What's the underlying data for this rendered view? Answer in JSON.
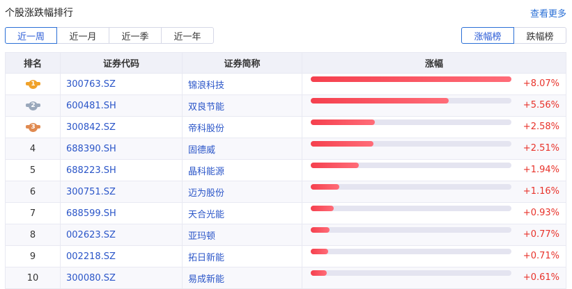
{
  "header": {
    "title": "个股涨跌幅排行",
    "more": "查看更多"
  },
  "periods": [
    {
      "label": "近一周",
      "active": true
    },
    {
      "label": "近一月",
      "active": false
    },
    {
      "label": "近一季",
      "active": false
    },
    {
      "label": "近一年",
      "active": false
    }
  ],
  "board": [
    {
      "label": "涨幅榜",
      "active": true
    },
    {
      "label": "跌幅榜",
      "active": false
    }
  ],
  "columns": [
    "排名",
    "证券代码",
    "证券简称",
    "涨幅"
  ],
  "colors": {
    "accent": "#2a6fd6",
    "up": "#e8322a",
    "gold": "#f0a22a",
    "silver": "#9aa8bb",
    "bronze": "#e08a50"
  },
  "rows": [
    {
      "rank": "1",
      "code": "300763.SZ",
      "name": "锦浪科技",
      "change": "+8.07%",
      "pct": 8.07
    },
    {
      "rank": "2",
      "code": "600481.SH",
      "name": "双良节能",
      "change": "+5.56%",
      "pct": 5.56
    },
    {
      "rank": "3",
      "code": "300842.SZ",
      "name": "帝科股份",
      "change": "+2.58%",
      "pct": 2.58
    },
    {
      "rank": "4",
      "code": "688390.SH",
      "name": "固德威",
      "change": "+2.51%",
      "pct": 2.51
    },
    {
      "rank": "5",
      "code": "688223.SH",
      "name": "晶科能源",
      "change": "+1.94%",
      "pct": 1.94
    },
    {
      "rank": "6",
      "code": "300751.SZ",
      "name": "迈为股份",
      "change": "+1.16%",
      "pct": 1.16
    },
    {
      "rank": "7",
      "code": "688599.SH",
      "name": "天合光能",
      "change": "+0.93%",
      "pct": 0.93
    },
    {
      "rank": "8",
      "code": "002623.SZ",
      "name": "亚玛顿",
      "change": "+0.77%",
      "pct": 0.77
    },
    {
      "rank": "9",
      "code": "002218.SZ",
      "name": "拓日新能",
      "change": "+0.71%",
      "pct": 0.71
    },
    {
      "rank": "10",
      "code": "300080.SZ",
      "name": "易成新能",
      "change": "+0.61%",
      "pct": 0.61
    }
  ]
}
